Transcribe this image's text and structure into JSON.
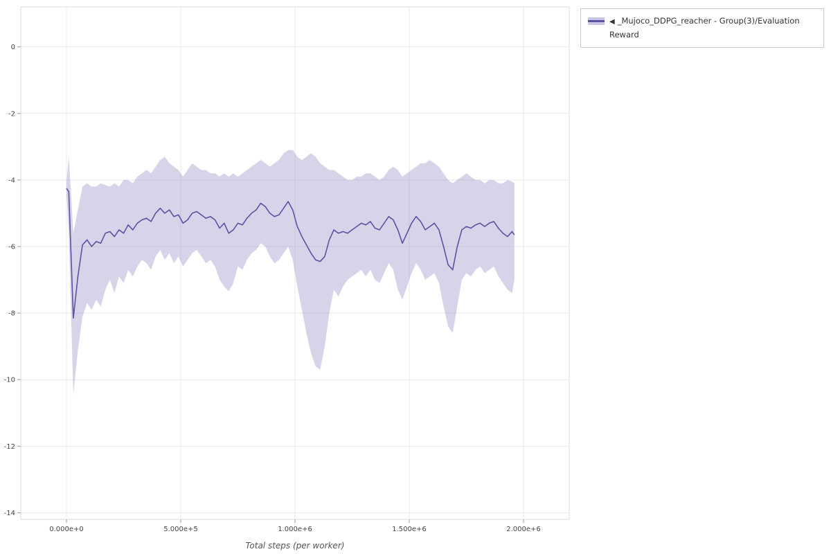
{
  "legend": {
    "collapse_icon": "◀",
    "label": "_Mujoco_DDPG_reacher - Group(3)/Evaluation Reward",
    "line_color": "#5b52a3",
    "band_solid": "#c9c5e4"
  },
  "chart_data": {
    "type": "line",
    "title": "",
    "xlabel": "Total steps (per worker)",
    "ylabel": "",
    "grid": true,
    "legend_position": "top-right-outside",
    "x_range": [
      -200000,
      2200000
    ],
    "y_range": [
      -14.2,
      1.2
    ],
    "x_ticks": [
      {
        "value": 0,
        "label": "0.000e+0"
      },
      {
        "value": 500000,
        "label": "5.000e+5"
      },
      {
        "value": 1000000,
        "label": "1.000e+6"
      },
      {
        "value": 1500000,
        "label": "1.500e+6"
      },
      {
        "value": 2000000,
        "label": "2.000e+6"
      }
    ],
    "y_ticks": [
      {
        "value": 0,
        "label": "0"
      },
      {
        "value": -2,
        "label": "-2"
      },
      {
        "value": -4,
        "label": "-4"
      },
      {
        "value": -6,
        "label": "-6"
      },
      {
        "value": -8,
        "label": "-8"
      },
      {
        "value": -10,
        "label": "-10"
      },
      {
        "value": -12,
        "label": "-12"
      },
      {
        "value": -14,
        "label": "-14"
      }
    ],
    "series": [
      {
        "name": "_Mujoco_DDPG_reacher - Group(3)/Evaluation Reward",
        "line_color": "#5b52a3",
        "band_fill": "rgba(128,120,185,0.32)",
        "x": [
          0,
          10000,
          30000,
          50000,
          70000,
          90000,
          110000,
          130000,
          150000,
          170000,
          190000,
          210000,
          230000,
          250000,
          270000,
          290000,
          310000,
          330000,
          350000,
          370000,
          390000,
          410000,
          430000,
          450000,
          470000,
          490000,
          510000,
          530000,
          550000,
          570000,
          590000,
          610000,
          630000,
          650000,
          670000,
          690000,
          710000,
          730000,
          750000,
          770000,
          790000,
          810000,
          830000,
          850000,
          870000,
          890000,
          910000,
          930000,
          950000,
          970000,
          990000,
          1010000,
          1030000,
          1050000,
          1070000,
          1090000,
          1110000,
          1130000,
          1150000,
          1170000,
          1190000,
          1210000,
          1230000,
          1250000,
          1270000,
          1290000,
          1310000,
          1330000,
          1350000,
          1370000,
          1390000,
          1410000,
          1430000,
          1450000,
          1470000,
          1490000,
          1510000,
          1530000,
          1550000,
          1570000,
          1590000,
          1610000,
          1630000,
          1650000,
          1670000,
          1690000,
          1710000,
          1730000,
          1750000,
          1770000,
          1790000,
          1810000,
          1830000,
          1850000,
          1870000,
          1890000,
          1910000,
          1930000,
          1950000,
          1960000
        ],
        "mean": [
          -4.25,
          -4.35,
          -8.15,
          -6.9,
          -5.95,
          -5.8,
          -6.0,
          -5.85,
          -5.9,
          -5.6,
          -5.55,
          -5.7,
          -5.5,
          -5.6,
          -5.35,
          -5.5,
          -5.3,
          -5.2,
          -5.15,
          -5.25,
          -5.0,
          -4.85,
          -5.0,
          -4.9,
          -5.1,
          -5.05,
          -5.3,
          -5.2,
          -5.0,
          -4.95,
          -5.05,
          -5.15,
          -5.1,
          -5.2,
          -5.45,
          -5.3,
          -5.6,
          -5.5,
          -5.3,
          -5.35,
          -5.15,
          -5.0,
          -4.9,
          -4.7,
          -4.8,
          -5.0,
          -5.1,
          -5.05,
          -4.85,
          -4.65,
          -4.9,
          -5.4,
          -5.7,
          -5.95,
          -6.2,
          -6.4,
          -6.45,
          -6.3,
          -5.8,
          -5.5,
          -5.6,
          -5.55,
          -5.6,
          -5.5,
          -5.4,
          -5.3,
          -5.35,
          -5.25,
          -5.45,
          -5.5,
          -5.3,
          -5.1,
          -5.2,
          -5.5,
          -5.9,
          -5.6,
          -5.3,
          -5.1,
          -5.25,
          -5.5,
          -5.4,
          -5.3,
          -5.5,
          -6.0,
          -6.55,
          -6.7,
          -6.0,
          -5.5,
          -5.4,
          -5.45,
          -5.35,
          -5.3,
          -5.4,
          -5.3,
          -5.25,
          -5.45,
          -5.6,
          -5.7,
          -5.55,
          -5.65
        ],
        "lower": [
          -4.45,
          -5.6,
          -10.45,
          -9.1,
          -8.1,
          -7.7,
          -7.9,
          -7.6,
          -7.8,
          -7.3,
          -7.0,
          -7.4,
          -6.9,
          -7.1,
          -6.7,
          -6.9,
          -6.6,
          -6.4,
          -6.5,
          -6.7,
          -6.3,
          -6.1,
          -6.4,
          -6.2,
          -6.5,
          -6.3,
          -6.6,
          -6.4,
          -6.2,
          -6.1,
          -6.3,
          -6.5,
          -6.4,
          -6.6,
          -7.0,
          -7.2,
          -7.35,
          -7.1,
          -6.6,
          -6.7,
          -6.4,
          -6.2,
          -6.1,
          -5.9,
          -6.0,
          -6.3,
          -6.5,
          -6.4,
          -6.2,
          -6.0,
          -6.4,
          -7.2,
          -7.9,
          -8.6,
          -9.2,
          -9.6,
          -9.7,
          -9.0,
          -8.0,
          -7.3,
          -7.5,
          -7.2,
          -7.0,
          -6.9,
          -6.8,
          -6.7,
          -6.9,
          -6.7,
          -7.0,
          -7.1,
          -6.8,
          -6.5,
          -6.7,
          -7.3,
          -7.6,
          -7.2,
          -6.8,
          -6.5,
          -6.7,
          -7.0,
          -6.9,
          -6.8,
          -7.1,
          -7.8,
          -8.4,
          -8.6,
          -7.8,
          -7.0,
          -6.8,
          -6.9,
          -6.7,
          -6.6,
          -6.8,
          -6.7,
          -6.6,
          -6.9,
          -7.1,
          -7.3,
          -7.4,
          -7.0
        ],
        "upper": [
          -4.05,
          -3.3,
          -5.6,
          -4.9,
          -4.2,
          -4.1,
          -4.2,
          -4.2,
          -4.1,
          -4.15,
          -4.2,
          -4.1,
          -4.2,
          -4.0,
          -4.0,
          -4.1,
          -3.9,
          -3.8,
          -3.7,
          -3.8,
          -3.6,
          -3.4,
          -3.3,
          -3.5,
          -3.6,
          -3.7,
          -3.9,
          -3.7,
          -3.5,
          -3.6,
          -3.7,
          -3.7,
          -3.8,
          -3.8,
          -3.9,
          -3.8,
          -3.9,
          -3.8,
          -3.9,
          -3.8,
          -3.7,
          -3.6,
          -3.5,
          -3.4,
          -3.5,
          -3.6,
          -3.5,
          -3.4,
          -3.2,
          -3.1,
          -3.1,
          -3.3,
          -3.4,
          -3.3,
          -3.2,
          -3.3,
          -3.5,
          -3.6,
          -3.7,
          -3.7,
          -3.8,
          -3.9,
          -4.0,
          -4.0,
          -3.9,
          -3.9,
          -3.8,
          -3.8,
          -3.9,
          -4.0,
          -3.9,
          -3.7,
          -3.6,
          -3.7,
          -3.9,
          -3.8,
          -3.7,
          -3.6,
          -3.5,
          -3.5,
          -3.4,
          -3.5,
          -3.6,
          -3.8,
          -4.0,
          -4.1,
          -4.0,
          -3.9,
          -3.8,
          -3.9,
          -4.0,
          -4.0,
          -4.1,
          -4.0,
          -4.0,
          -4.1,
          -4.1,
          -4.0,
          -4.05,
          -4.1
        ]
      }
    ]
  }
}
